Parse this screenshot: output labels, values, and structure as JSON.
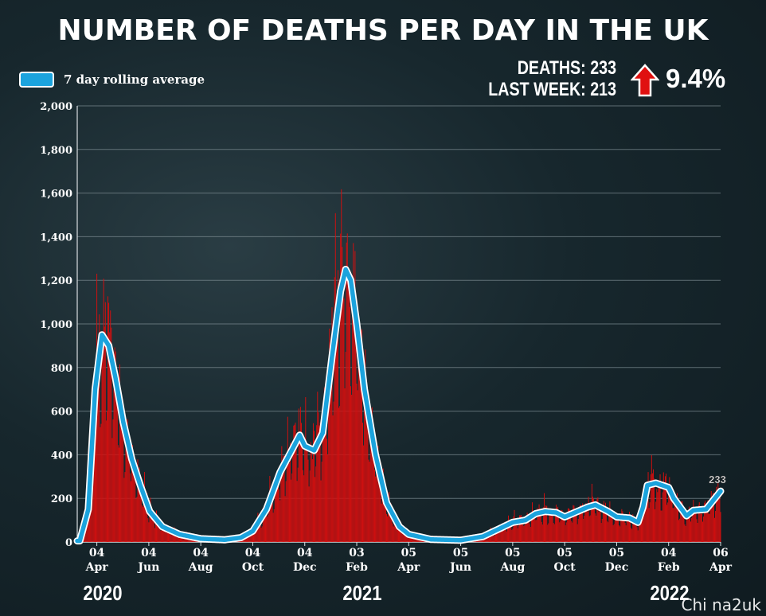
{
  "header": {
    "title": "NUMBER OF DEATHS PER DAY IN THE UK"
  },
  "legend": {
    "label": "7 day rolling average",
    "color": "#1ba3dd"
  },
  "stats": {
    "deaths_line": "DEATHS: 233",
    "last_week_line": "LAST WEEK: 213",
    "change": "9.4%",
    "change_direction": "up"
  },
  "watermark": "Chi na2uk",
  "chart_data": {
    "type": "bar",
    "title": "NUMBER OF DEATHS PER DAY IN THE UK",
    "ylim": [
      0,
      2000
    ],
    "y_ticks": [
      "0",
      "200",
      "400",
      "600",
      "800",
      "1,000",
      "1,200",
      "1,400",
      "1,600",
      "1,800",
      "2,000"
    ],
    "grid": true,
    "legend_position": "top-left",
    "bar_color": "#d40f0f",
    "line_color": "#1ba3dd",
    "x_ticks": [
      {
        "day": "04",
        "month": "Apr"
      },
      {
        "day": "04",
        "month": "Jun"
      },
      {
        "day": "04",
        "month": "Aug"
      },
      {
        "day": "04",
        "month": "Oct"
      },
      {
        "day": "04",
        "month": "Dec"
      },
      {
        "day": "03",
        "month": "Feb"
      },
      {
        "day": "05",
        "month": "Apr"
      },
      {
        "day": "05",
        "month": "Jun"
      },
      {
        "day": "05",
        "month": "Aug"
      },
      {
        "day": "05",
        "month": "Oct"
      },
      {
        "day": "05",
        "month": "Dec"
      },
      {
        "day": "04",
        "month": "Feb"
      },
      {
        "day": "06",
        "month": "Apr"
      }
    ],
    "year_labels": [
      "2020",
      "2021",
      "2022"
    ],
    "rolling_average_keypoints": [
      [
        "2020-03-15",
        5
      ],
      [
        "2020-03-25",
        150
      ],
      [
        "2020-04-02",
        700
      ],
      [
        "2020-04-10",
        950
      ],
      [
        "2020-04-18",
        900
      ],
      [
        "2020-04-26",
        750
      ],
      [
        "2020-05-05",
        550
      ],
      [
        "2020-05-15",
        380
      ],
      [
        "2020-05-25",
        260
      ],
      [
        "2020-06-05",
        140
      ],
      [
        "2020-06-20",
        70
      ],
      [
        "2020-07-10",
        35
      ],
      [
        "2020-08-04",
        15
      ],
      [
        "2020-09-01",
        10
      ],
      [
        "2020-09-20",
        20
      ],
      [
        "2020-10-04",
        50
      ],
      [
        "2020-10-20",
        150
      ],
      [
        "2020-11-05",
        320
      ],
      [
        "2020-11-20",
        430
      ],
      [
        "2020-11-28",
        490
      ],
      [
        "2020-12-04",
        440
      ],
      [
        "2020-12-15",
        420
      ],
      [
        "2020-12-25",
        500
      ],
      [
        "2021-01-05",
        850
      ],
      [
        "2021-01-15",
        1150
      ],
      [
        "2021-01-21",
        1250
      ],
      [
        "2021-01-27",
        1200
      ],
      [
        "2021-02-03",
        1000
      ],
      [
        "2021-02-12",
        700
      ],
      [
        "2021-02-25",
        400
      ],
      [
        "2021-03-10",
        180
      ],
      [
        "2021-03-25",
        70
      ],
      [
        "2021-04-05",
        35
      ],
      [
        "2021-05-01",
        12
      ],
      [
        "2021-06-05",
        8
      ],
      [
        "2021-07-01",
        25
      ],
      [
        "2021-07-20",
        60
      ],
      [
        "2021-08-05",
        90
      ],
      [
        "2021-08-20",
        100
      ],
      [
        "2021-09-01",
        130
      ],
      [
        "2021-09-12",
        140
      ],
      [
        "2021-09-25",
        135
      ],
      [
        "2021-10-05",
        115
      ],
      [
        "2021-10-20",
        140
      ],
      [
        "2021-11-01",
        160
      ],
      [
        "2021-11-10",
        170
      ],
      [
        "2021-11-25",
        140
      ],
      [
        "2021-12-05",
        115
      ],
      [
        "2021-12-20",
        110
      ],
      [
        "2021-12-30",
        90
      ],
      [
        "2022-01-05",
        160
      ],
      [
        "2022-01-10",
        260
      ],
      [
        "2022-01-20",
        270
      ],
      [
        "2022-02-04",
        250
      ],
      [
        "2022-02-10",
        200
      ],
      [
        "2022-02-25",
        120
      ],
      [
        "2022-03-05",
        145
      ],
      [
        "2022-03-20",
        150
      ],
      [
        "2022-04-06",
        233
      ]
    ],
    "last_value_label": "233"
  }
}
